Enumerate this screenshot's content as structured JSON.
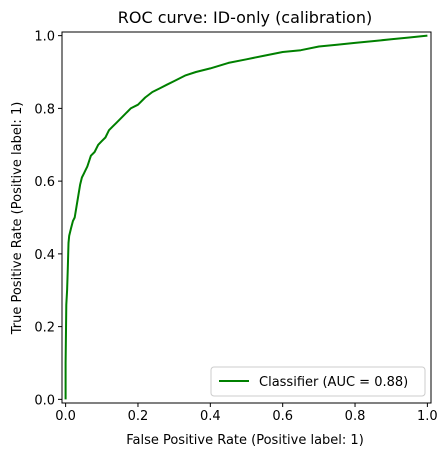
{
  "chart_data": {
    "type": "line",
    "title": "ROC curve: ID-only (calibration)",
    "xlabel": "False Positive Rate (Positive label: 1)",
    "ylabel": "True Positive Rate (Positive label: 1)",
    "xlim": [
      -0.01,
      1.01
    ],
    "ylim": [
      -0.01,
      1.01
    ],
    "xticks": [
      0.0,
      0.2,
      0.4,
      0.6,
      0.8,
      1.0
    ],
    "yticks": [
      0.0,
      0.2,
      0.4,
      0.6,
      0.8,
      1.0
    ],
    "xtick_labels": [
      "0.0",
      "0.2",
      "0.4",
      "0.6",
      "0.8",
      "1.0"
    ],
    "ytick_labels": [
      "0.0",
      "0.2",
      "0.4",
      "0.6",
      "0.8",
      "1.0"
    ],
    "grid": false,
    "legend_position": "lower-right",
    "series": [
      {
        "name": "Classifier (AUC = 0.88)",
        "color": "#008000",
        "x": [
          0.0,
          0.0,
          0.002,
          0.004,
          0.006,
          0.008,
          0.01,
          0.015,
          0.02,
          0.025,
          0.03,
          0.035,
          0.04,
          0.045,
          0.05,
          0.055,
          0.06,
          0.07,
          0.08,
          0.09,
          0.1,
          0.11,
          0.12,
          0.13,
          0.14,
          0.15,
          0.16,
          0.18,
          0.2,
          0.22,
          0.24,
          0.26,
          0.28,
          0.3,
          0.33,
          0.36,
          0.4,
          0.45,
          0.5,
          0.55,
          0.6,
          0.65,
          0.7,
          0.75,
          0.8,
          0.85,
          0.9,
          0.95,
          0.98,
          1.0
        ],
        "y": [
          0.0,
          0.1,
          0.26,
          0.3,
          0.36,
          0.43,
          0.45,
          0.47,
          0.49,
          0.5,
          0.53,
          0.56,
          0.59,
          0.61,
          0.62,
          0.63,
          0.64,
          0.67,
          0.68,
          0.7,
          0.71,
          0.72,
          0.74,
          0.75,
          0.76,
          0.77,
          0.78,
          0.8,
          0.81,
          0.83,
          0.845,
          0.855,
          0.865,
          0.875,
          0.89,
          0.9,
          0.91,
          0.925,
          0.935,
          0.945,
          0.955,
          0.96,
          0.97,
          0.975,
          0.98,
          0.985,
          0.99,
          0.995,
          0.998,
          1.0
        ]
      }
    ]
  }
}
